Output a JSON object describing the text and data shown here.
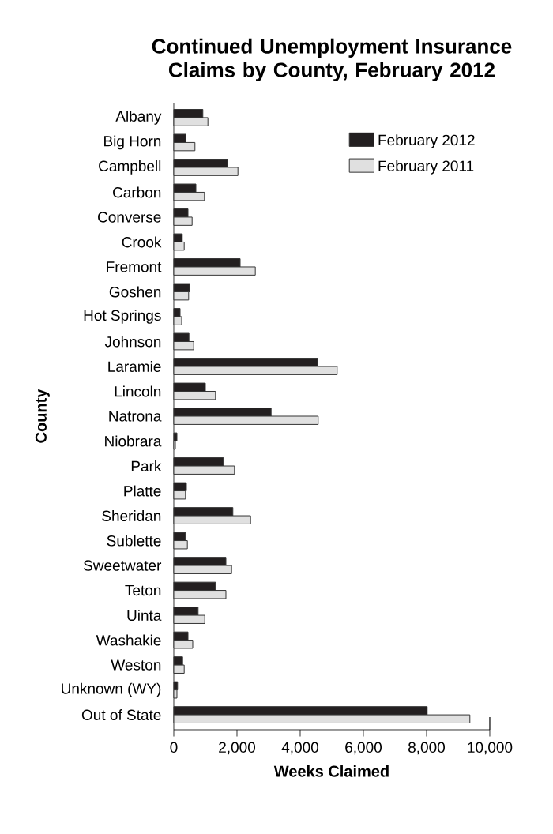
{
  "chart_data": {
    "type": "bar",
    "orientation": "horizontal",
    "title": "Continued Unemployment Insurance Claims by County, February 2012",
    "xlabel": "Weeks Claimed",
    "ylabel": "County",
    "categories": [
      "Albany",
      "Big Horn",
      "Campbell",
      "Carbon",
      "Converse",
      "Crook",
      "Fremont",
      "Goshen",
      "Hot Springs",
      "Johnson",
      "Laramie",
      "Lincoln",
      "Natrona",
      "Niobrara",
      "Park",
      "Platte",
      "Sheridan",
      "Sublette",
      "Sweetwater",
      "Teton",
      "Uinta",
      "Washakie",
      "Weston",
      "Unknown (WY)",
      "Out of State"
    ],
    "series": [
      {
        "name": "February 2012",
        "color": "#231f20",
        "values": [
          920,
          380,
          1700,
          700,
          450,
          270,
          2100,
          500,
          200,
          480,
          4550,
          1000,
          3080,
          100,
          1570,
          400,
          1870,
          370,
          1650,
          1320,
          770,
          450,
          280,
          120,
          8020
        ]
      },
      {
        "name": "February 2011",
        "color": "#e0e0e0",
        "values": [
          1080,
          670,
          2030,
          970,
          580,
          330,
          2580,
          470,
          250,
          630,
          5170,
          1320,
          4570,
          50,
          1920,
          370,
          2430,
          430,
          1830,
          1650,
          980,
          600,
          330,
          100,
          9370
        ]
      }
    ],
    "xlim": [
      0,
      10000
    ],
    "xticks": [
      0,
      {
        "value": 2000,
        "label": "2,000"
      },
      {
        "value": 4000,
        "label": "4,000"
      },
      {
        "value": 6000,
        "label": "6,000"
      },
      {
        "value": 8000,
        "label": "8,000"
      },
      {
        "value": 10000,
        "label": "10,000"
      }
    ],
    "legend": "top right",
    "grid": false
  }
}
